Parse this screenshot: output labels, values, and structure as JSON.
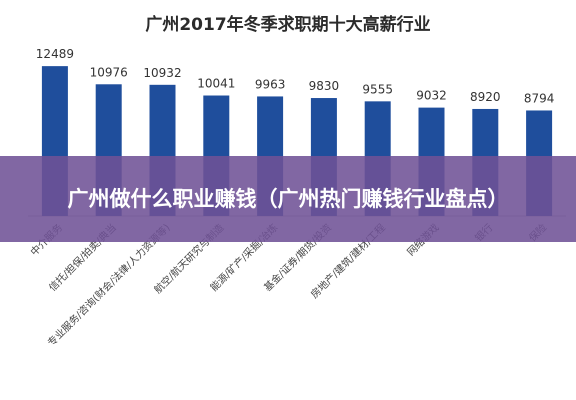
{
  "title": "广州2017年冬季求职期十大高薪行业",
  "overlay": {
    "text": "广州做什么职业赚钱（广州热门赚钱行业盘点）"
  },
  "colors": {
    "bar": "#1f4e9c",
    "axis": "#bfbfbf",
    "overlay": "#70529a"
  },
  "chart_data": {
    "type": "bar",
    "title": "广州2017年冬季求职期十大高薪行业",
    "categories": [
      "中介服务",
      "信托/担保/拍卖/典当",
      "专业服务/咨询(财会/法律/人力资源等)",
      "航空/航天研究与制造",
      "能源/矿产/采掘/冶炼",
      "基金/证券/期货/投资",
      "房地产/建筑/建材/工程",
      "网络游戏",
      "银行",
      "保险"
    ],
    "values": [
      12489,
      10976,
      10932,
      10041,
      9963,
      9830,
      9555,
      9032,
      8920,
      8794
    ],
    "ylim": [
      0,
      14000
    ],
    "xlabel": "",
    "ylabel": "",
    "grid": false
  }
}
